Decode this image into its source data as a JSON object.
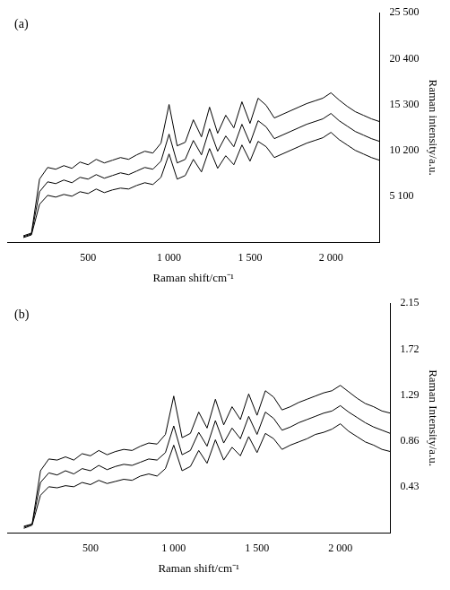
{
  "chart_data": [
    {
      "type": "line",
      "title": "(a)",
      "x_label": "Raman shift/cm⁻¹",
      "y_label": "Raman intensity/a.u.",
      "x": [
        100,
        150,
        200,
        250,
        300,
        350,
        400,
        450,
        500,
        550,
        600,
        650,
        700,
        750,
        800,
        850,
        900,
        950,
        1000,
        1050,
        1100,
        1150,
        1200,
        1250,
        1300,
        1350,
        1400,
        1450,
        1500,
        1550,
        1600,
        1650,
        1700,
        1750,
        1800,
        1850,
        1900,
        1950,
        2000,
        2050,
        2100,
        2150,
        2200,
        2250,
        2300
      ],
      "series": [
        {
          "color": "#000000",
          "values": [
            500,
            800,
            4200,
            5200,
            5000,
            5300,
            5100,
            5600,
            5400,
            5900,
            5500,
            5800,
            6000,
            5900,
            6300,
            6600,
            6400,
            7200,
            9800,
            7000,
            7400,
            9200,
            7800,
            10400,
            8200,
            9600,
            8600,
            10800,
            9000,
            11200,
            10600,
            9400,
            9800,
            10200,
            10600,
            11000,
            11300,
            11600,
            12200,
            11400,
            10800,
            10200,
            9800,
            9400,
            9100
          ]
        },
        {
          "color": "#000000",
          "values": [
            600,
            900,
            5600,
            6700,
            6500,
            6900,
            6600,
            7200,
            7000,
            7500,
            7100,
            7400,
            7700,
            7500,
            7900,
            8300,
            8100,
            9000,
            12000,
            8800,
            9200,
            11300,
            9700,
            12600,
            10100,
            11800,
            10600,
            13100,
            11000,
            13500,
            12800,
            11500,
            11900,
            12300,
            12700,
            13100,
            13400,
            13700,
            14300,
            13500,
            12900,
            12300,
            11900,
            11500,
            11200
          ]
        },
        {
          "color": "#000000",
          "values": [
            700,
            1000,
            7000,
            8300,
            8100,
            8500,
            8200,
            8900,
            8600,
            9200,
            8800,
            9100,
            9400,
            9200,
            9700,
            10100,
            9900,
            11000,
            15300,
            10700,
            11100,
            13600,
            11700,
            15000,
            12100,
            14100,
            12700,
            15600,
            13200,
            16000,
            15200,
            13800,
            14200,
            14600,
            15000,
            15400,
            15700,
            16000,
            16600,
            15800,
            15100,
            14500,
            14100,
            13700,
            13400
          ]
        }
      ],
      "xlim": [
        0,
        2300
      ],
      "xticks": [
        500,
        {
          "value": 1000,
          "label": "1 000"
        },
        {
          "value": 1500,
          "label": "1 500"
        },
        {
          "value": 2000,
          "label": "2 000"
        }
      ],
      "ylim": [
        0,
        25500
      ],
      "yticks": [
        {
          "value": 5100,
          "label": "5 100"
        },
        {
          "value": 10200,
          "label": "10 200"
        },
        {
          "value": 15300,
          "label": "15 300"
        },
        {
          "value": 20400,
          "label": "20 400"
        },
        {
          "value": 25500,
          "label": "25 500"
        }
      ],
      "grid": false
    },
    {
      "type": "line",
      "title": "(b)",
      "x_label": "Raman shift/cm⁻¹",
      "y_label": "Raman Intensity/a.u.",
      "x": [
        100,
        150,
        200,
        250,
        300,
        350,
        400,
        450,
        500,
        550,
        600,
        650,
        700,
        750,
        800,
        850,
        900,
        950,
        1000,
        1050,
        1100,
        1150,
        1200,
        1250,
        1300,
        1350,
        1400,
        1450,
        1500,
        1550,
        1600,
        1650,
        1700,
        1750,
        1800,
        1850,
        1900,
        1950,
        2000,
        2050,
        2100,
        2150,
        2200,
        2250,
        2300
      ],
      "series": [
        {
          "color": "#000000",
          "values": [
            0.04,
            0.07,
            0.35,
            0.43,
            0.42,
            0.44,
            0.43,
            0.47,
            0.45,
            0.49,
            0.46,
            0.48,
            0.5,
            0.49,
            0.53,
            0.55,
            0.53,
            0.6,
            0.82,
            0.58,
            0.62,
            0.77,
            0.65,
            0.87,
            0.68,
            0.8,
            0.72,
            0.9,
            0.75,
            0.93,
            0.88,
            0.78,
            0.82,
            0.85,
            0.88,
            0.92,
            0.94,
            0.97,
            1.02,
            0.95,
            0.9,
            0.85,
            0.82,
            0.78,
            0.76
          ]
        },
        {
          "color": "#000000",
          "values": [
            0.05,
            0.08,
            0.47,
            0.56,
            0.54,
            0.58,
            0.55,
            0.6,
            0.58,
            0.63,
            0.59,
            0.62,
            0.64,
            0.63,
            0.66,
            0.69,
            0.68,
            0.75,
            1.0,
            0.73,
            0.77,
            0.94,
            0.81,
            1.05,
            0.84,
            0.98,
            0.88,
            1.09,
            0.92,
            1.13,
            1.07,
            0.96,
            0.99,
            1.03,
            1.06,
            1.09,
            1.12,
            1.14,
            1.19,
            1.13,
            1.08,
            1.03,
            0.99,
            0.96,
            0.93
          ]
        },
        {
          "color": "#000000",
          "values": [
            0.06,
            0.08,
            0.58,
            0.69,
            0.68,
            0.71,
            0.68,
            0.74,
            0.72,
            0.77,
            0.73,
            0.76,
            0.78,
            0.77,
            0.81,
            0.84,
            0.83,
            0.92,
            1.28,
            0.89,
            0.93,
            1.13,
            0.98,
            1.25,
            1.01,
            1.18,
            1.06,
            1.3,
            1.1,
            1.33,
            1.27,
            1.15,
            1.18,
            1.22,
            1.25,
            1.28,
            1.31,
            1.33,
            1.38,
            1.32,
            1.26,
            1.21,
            1.18,
            1.14,
            1.12
          ]
        }
      ],
      "xlim": [
        0,
        2300
      ],
      "xticks": [
        500,
        {
          "value": 1000,
          "label": "1 000"
        },
        {
          "value": 1500,
          "label": "1 500"
        },
        {
          "value": 2000,
          "label": "2 000"
        }
      ],
      "ylim": [
        0,
        2.15
      ],
      "yticks": [
        0.43,
        0.86,
        1.29,
        1.72,
        2.15
      ],
      "grid": false
    }
  ]
}
